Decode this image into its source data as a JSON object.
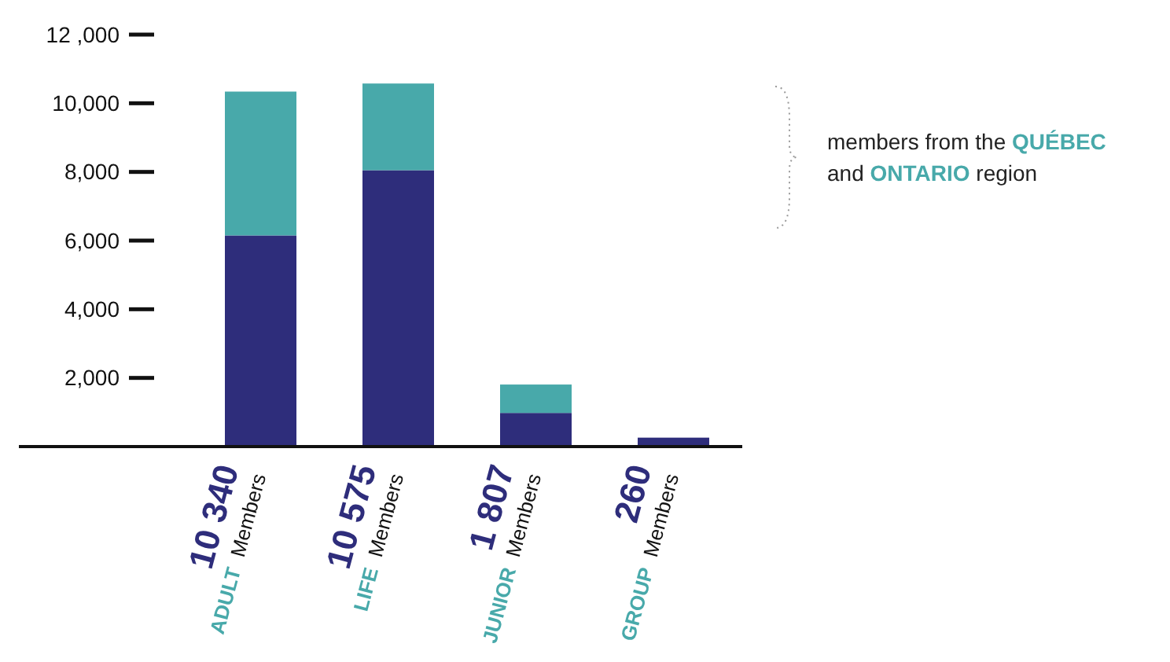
{
  "chart_data": {
    "type": "bar",
    "stacked": true,
    "categories": [
      "ADULT Members",
      "LIFE Members",
      "JUNIOR Members",
      "GROUP Members"
    ],
    "series": [
      {
        "color": "#2e2d7b",
        "values": [
          6150,
          8050,
          980,
          260
        ]
      },
      {
        "color": "#48a9aa",
        "values": [
          4190,
          2525,
          827,
          0
        ]
      }
    ],
    "totals": [
      "10 340",
      "10 575",
      "1 807",
      "260"
    ],
    "ylim": [
      0,
      12000
    ],
    "yticks": [
      {
        "value": 2000,
        "label": "2,000"
      },
      {
        "value": 4000,
        "label": "4,000"
      },
      {
        "value": 6000,
        "label": "6,000"
      },
      {
        "value": 8000,
        "label": "8,000"
      },
      {
        "value": 10000,
        "label": "10,000"
      },
      {
        "value": 12000,
        "label": "12 ,000"
      }
    ],
    "annotations": [
      "members from the QUÉBEC and ONTARIO region"
    ],
    "grid": false
  }
}
